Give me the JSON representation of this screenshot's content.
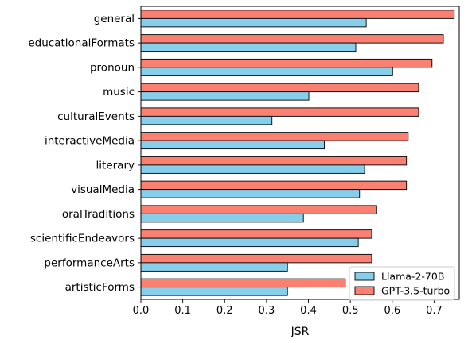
{
  "chart_data": {
    "type": "bar",
    "orientation": "horizontal",
    "title": "",
    "xlabel": "JSR",
    "ylabel": "",
    "xlim": [
      0.0,
      0.76
    ],
    "xticks": [
      "0.0",
      "0.1",
      "0.2",
      "0.3",
      "0.4",
      "0.5",
      "0.6",
      "0.7"
    ],
    "grid": false,
    "legend_position": "bottom-right",
    "categories": [
      "general",
      "educationalFormats",
      "pronoun",
      "music",
      "culturalEvents",
      "interactiveMedia",
      "literary",
      "visualMedia",
      "oralTraditions",
      "scientificEndeavors",
      "performanceArts",
      "artisticForms"
    ],
    "series": [
      {
        "name": "Llama-2-70B",
        "color": "#87ceeb",
        "values": [
          0.538,
          0.513,
          0.601,
          0.401,
          0.313,
          0.438,
          0.534,
          0.522,
          0.388,
          0.519,
          0.35,
          0.35
        ]
      },
      {
        "name": "GPT-3.5-turbo",
        "color": "#fa8072",
        "values": [
          0.748,
          0.722,
          0.695,
          0.663,
          0.663,
          0.638,
          0.634,
          0.634,
          0.563,
          0.551,
          0.551,
          0.488
        ]
      }
    ]
  }
}
